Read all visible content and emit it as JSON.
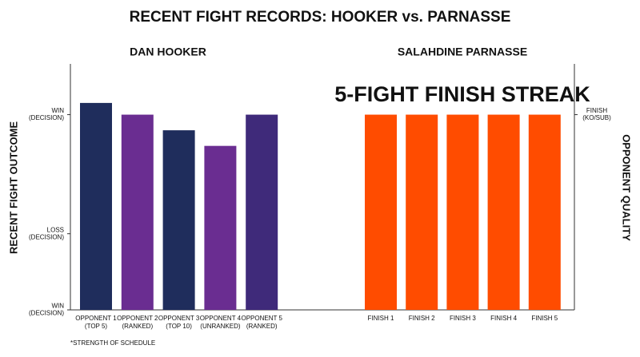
{
  "chart_data": {
    "type": "bar",
    "title": "RECENT FIGHT RECORDS: HOOKER vs. PARNASSE",
    "ylabel": "RECENT FIGHT OUTCOME",
    "y2label": "OPPONENT QUALITY",
    "annotation": "5-FIGHT FINISH STREAK",
    "footnote": "*STRENGTH OF SCHEDULE",
    "ylim": [
      0,
      126
    ],
    "yticks": [
      {
        "value": 0,
        "label": [
          "WIN",
          "(DECISION)"
        ]
      },
      {
        "value": 39,
        "label": [
          "LOSS",
          "(DECISION)"
        ]
      },
      {
        "value": 100,
        "label": [
          "WIN",
          "(DECISION)"
        ]
      }
    ],
    "y2lim": [
      0,
      126
    ],
    "y2ticks": [
      {
        "value": 100,
        "label": [
          "FINISH",
          "(KO/SUB)"
        ]
      }
    ],
    "panels": [
      {
        "title": "DAN HOOKER",
        "categories": [
          [
            "OPPONENT 1",
            "(TOP 5)"
          ],
          [
            "OPPONENT 2",
            "(RANKED)"
          ],
          [
            "OPPONENT 3",
            "(TOP 10)"
          ],
          [
            "OPPONENT 4",
            "(UNRANKED)"
          ],
          [
            "OPPONENT 5",
            "(RANKED)"
          ]
        ],
        "values": [
          106,
          100,
          92,
          84,
          100
        ],
        "colors": [
          "#1f2d5c",
          "#6a2d91",
          "#1f2d5c",
          "#6a2d91",
          "#3f2a7a"
        ]
      },
      {
        "title": "SALAHDINE PARNASSE",
        "axis": "y2",
        "categories": [
          [
            "FINISH 1"
          ],
          [
            "FINISH 2"
          ],
          [
            "FINISH 3"
          ],
          [
            "FINISH 4"
          ],
          [
            "FINISH 5"
          ]
        ],
        "values": [
          100,
          100,
          100,
          100,
          100
        ],
        "colors": [
          "#ff4c00",
          "#ff4c00",
          "#ff4c00",
          "#ff4c00",
          "#ff4c00"
        ]
      }
    ]
  }
}
